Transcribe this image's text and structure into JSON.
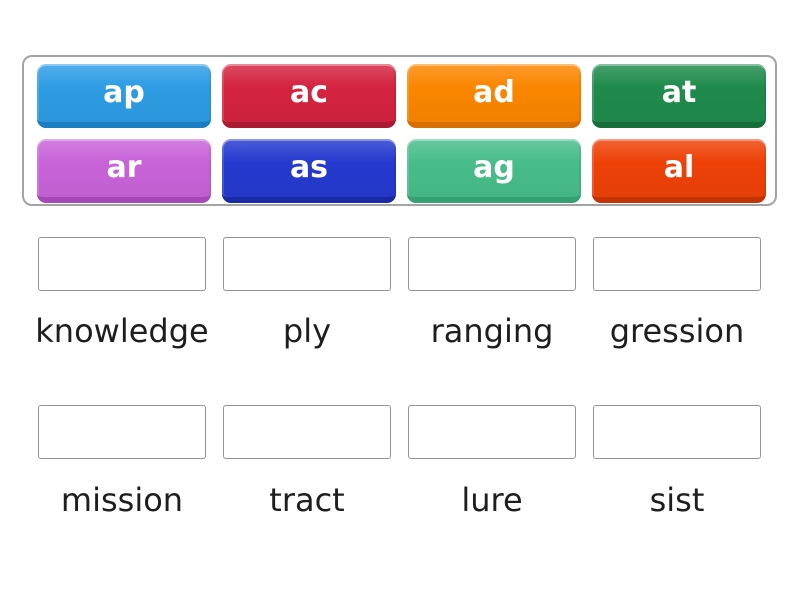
{
  "game": {
    "type": "match-up-prefix-game",
    "colors": {
      "background": "#ffffff",
      "bank_border": "#a3a3a3",
      "zone_border": "#949494",
      "word_text": "#1e1e1e",
      "tile_text": "#ffffff"
    },
    "tiles": [
      {
        "label": "ap",
        "color": "#2d9ce4",
        "color_dark": "#1a7ec2"
      },
      {
        "label": "ac",
        "color": "#d42340",
        "color_dark": "#aa1a31"
      },
      {
        "label": "ad",
        "color": "#fb8600",
        "color_dark": "#d66e00"
      },
      {
        "label": "at",
        "color": "#1f8b4c",
        "color_dark": "#166f3b"
      },
      {
        "label": "ar",
        "color": "#c863d8",
        "color_dark": "#a848b8"
      },
      {
        "label": "as",
        "color": "#2539cf",
        "color_dark": "#1a2aa6"
      },
      {
        "label": "ag",
        "color": "#47bd89",
        "color_dark": "#35a071"
      },
      {
        "label": "al",
        "color": "#ee4108",
        "color_dark": "#c23305"
      }
    ],
    "answers": [
      {
        "word": "knowledge"
      },
      {
        "word": "ply"
      },
      {
        "word": "ranging"
      },
      {
        "word": "gression"
      },
      {
        "word": "mission"
      },
      {
        "word": "tract"
      },
      {
        "word": "lure"
      },
      {
        "word": "sist"
      }
    ]
  }
}
